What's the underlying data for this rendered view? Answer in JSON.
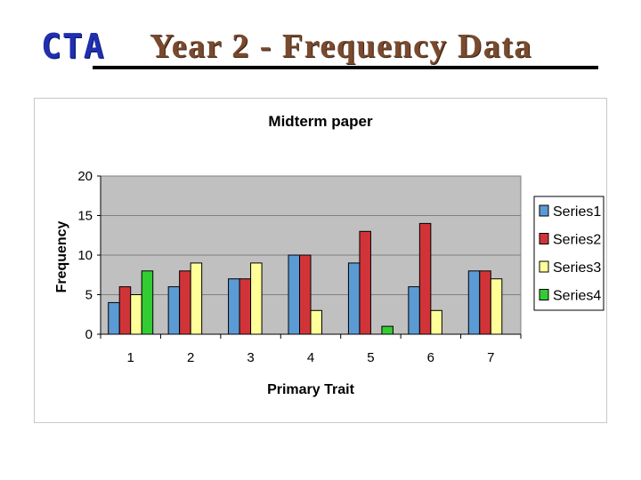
{
  "header": {
    "logo_text": "CTA",
    "title": "Year 2 - Frequency  Data"
  },
  "chart_data": {
    "type": "bar",
    "title": "Midterm paper",
    "xlabel": "Primary Trait",
    "ylabel": "Frequency",
    "categories": [
      "1",
      "2",
      "3",
      "4",
      "5",
      "6",
      "7"
    ],
    "ylim": [
      0,
      20
    ],
    "yticks": [
      0,
      5,
      10,
      15,
      20
    ],
    "grid": true,
    "legend_position": "right",
    "series": [
      {
        "name": "Series1",
        "color": "#5b9bd5",
        "values": [
          4,
          6,
          7,
          10,
          9,
          6,
          8
        ]
      },
      {
        "name": "Series2",
        "color": "#d13438",
        "values": [
          6,
          8,
          7,
          10,
          13,
          14,
          8
        ]
      },
      {
        "name": "Series3",
        "color": "#ffff99",
        "values": [
          5,
          9,
          9,
          3,
          0,
          3,
          7
        ]
      },
      {
        "name": "Series4",
        "color": "#33cc33",
        "values": [
          8,
          0,
          0,
          0,
          1,
          0,
          0
        ]
      }
    ]
  }
}
